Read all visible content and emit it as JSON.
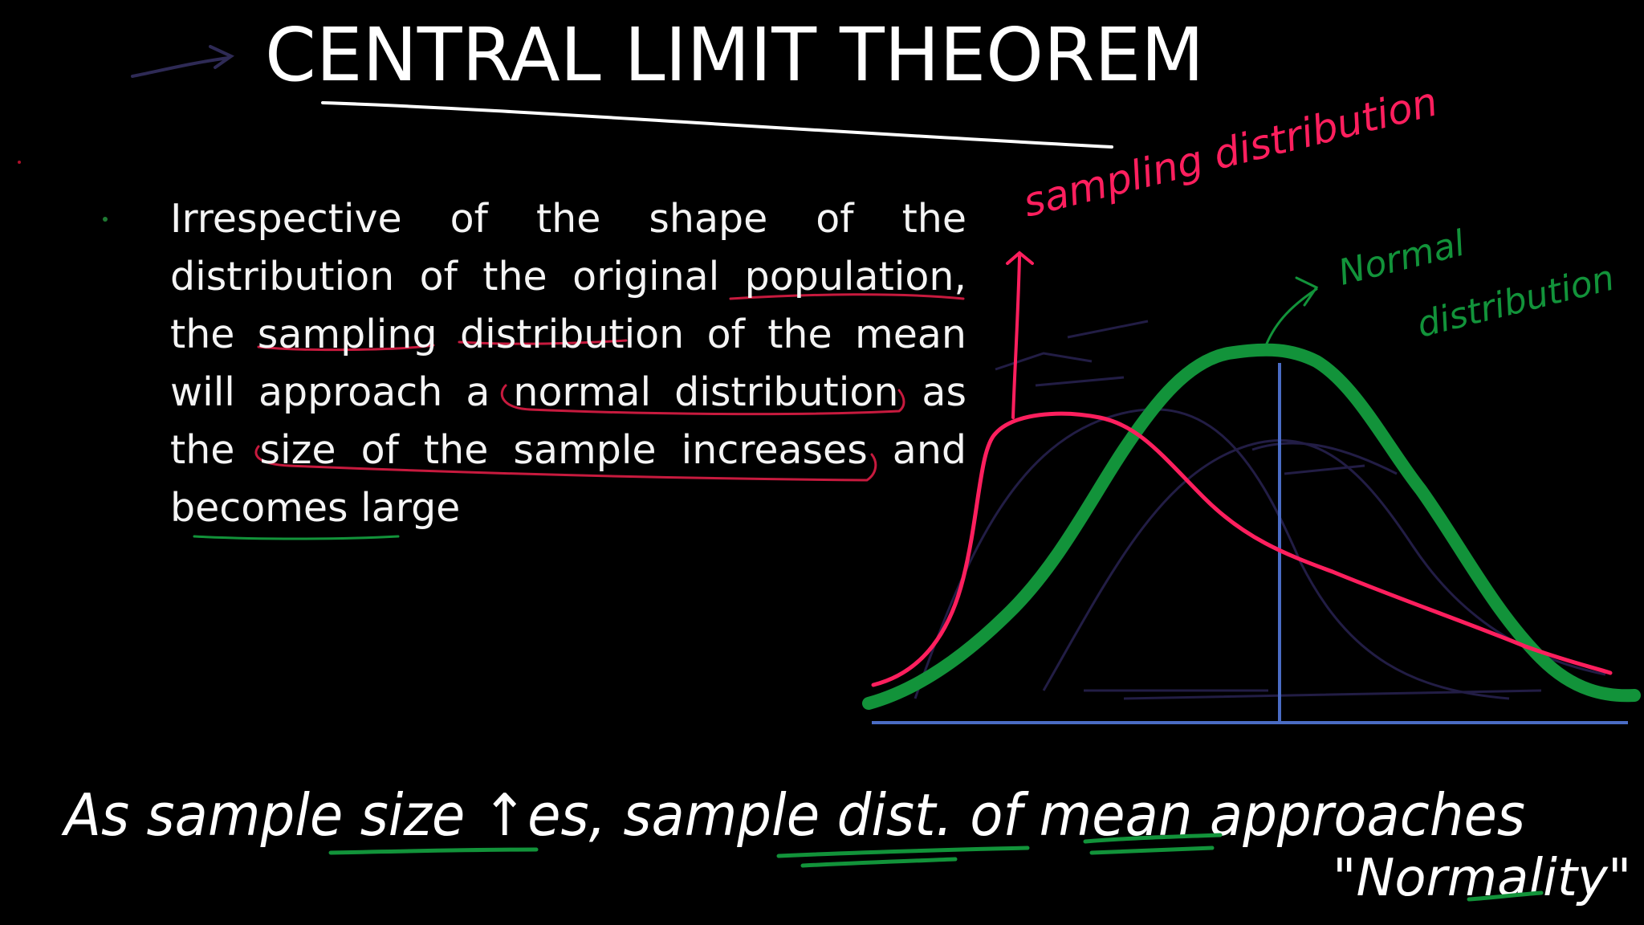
{
  "slide": {
    "title": "CENTRAL LIMIT THEOREM",
    "paragraph": "Irrespective of the shape of the distribution of the original population, the sampling distribution of the mean will approach a normal distribution as the size of the sample increases and becomes large"
  },
  "annotations": {
    "sampling_label": "sampling distribution",
    "normal_label_line1": "Normal",
    "normal_label_line2": "distribution",
    "bottom_note": "As sample size ↑es, sample dist. of mean approaches",
    "bottom_note_quote": "\"Normality\""
  },
  "colors": {
    "background": "#000000",
    "text": "#f4f4f4",
    "pink": "#ff1f5e",
    "green": "#12933a",
    "axis": "#4a6cc4",
    "faint": "#2a2450"
  }
}
